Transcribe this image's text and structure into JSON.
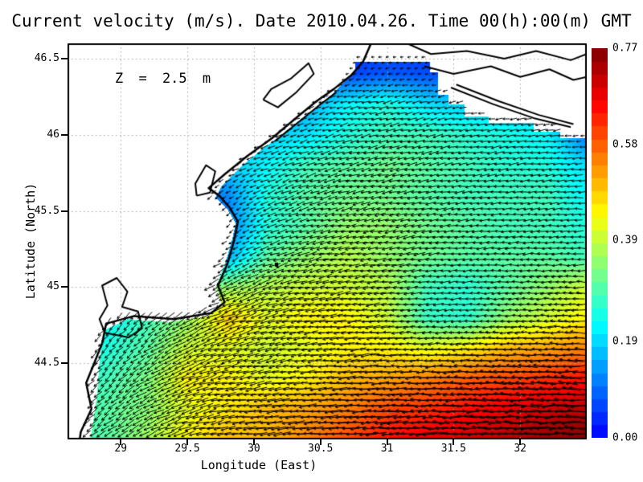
{
  "title": "Current velocity (m/s). Date 2010.04.26. Time 00(h):00(m) GMT",
  "annotation": "Z = 2.5 m",
  "axes": {
    "xlabel": "Longitude (East)",
    "ylabel": "Latitude (North)",
    "xtick_labels": [
      "29",
      "29.5",
      "30",
      "30.5",
      "31",
      "31.5",
      "32"
    ],
    "ytick_labels": [
      "46.5",
      "46",
      "45.5",
      "45",
      "44.5"
    ]
  },
  "colorbar": {
    "tick_labels": [
      "0.77",
      "0.58",
      "0.39",
      "0.19",
      "0.00"
    ]
  },
  "colors": {
    "background": "#ffffff",
    "land": "#ffffff",
    "coast": "#000000",
    "gridline": "#a0a0a0",
    "arrow": "#000000",
    "frame": "#000000",
    "text": "#000000",
    "colormap_low": "#0000fa",
    "colormap_high": "#800000"
  },
  "chart_data": {
    "type": "heatmap",
    "subtype": "quiver-vector-field-map",
    "title": "Current velocity (m/s). Date 2010.04.26. Time 00(h):00(m) GMT",
    "xlabel": "Longitude (East)",
    "ylabel": "Latitude (North)",
    "depth_annotation": "Z = 2.5 m",
    "speed_units": "m/s",
    "xlim": [
      28.6,
      32.5
    ],
    "ylim": [
      44.0,
      46.6
    ],
    "xticks": [
      29,
      29.5,
      30,
      30.5,
      31,
      31.5,
      32
    ],
    "yticks": [
      46.5,
      46,
      45.5,
      45,
      44.5
    ],
    "grid": true,
    "colormap": "jet",
    "colorbar": {
      "min": 0.0,
      "max": 0.77,
      "label_values": [
        0.77,
        0.58,
        0.39,
        0.19,
        0.0
      ]
    },
    "grid_lons": [
      28.6,
      28.9,
      29.2,
      29.5,
      29.8,
      30.1,
      30.4,
      30.7,
      31.0,
      31.3,
      31.6,
      31.9,
      32.2,
      32.5
    ],
    "grid_lats": [
      44.0,
      44.2,
      44.4,
      44.6,
      44.8,
      45.0,
      45.2,
      45.4,
      45.6,
      45.8,
      46.0,
      46.2,
      46.4,
      46.6
    ],
    "speed": [
      [
        0.28,
        0.3,
        0.36,
        0.45,
        0.5,
        0.5,
        0.55,
        0.6,
        0.65,
        0.68,
        0.7,
        0.72,
        0.75,
        0.77
      ],
      [
        0.28,
        0.3,
        0.34,
        0.42,
        0.46,
        0.5,
        0.52,
        0.55,
        0.6,
        0.62,
        0.65,
        0.68,
        0.7,
        0.72
      ],
      [
        0.26,
        0.28,
        0.33,
        0.45,
        0.45,
        0.42,
        0.45,
        0.5,
        0.52,
        0.55,
        0.58,
        0.6,
        0.62,
        0.65
      ],
      [
        0.24,
        0.25,
        0.3,
        0.4,
        0.42,
        0.4,
        0.42,
        0.45,
        0.45,
        0.42,
        0.45,
        0.5,
        0.52,
        0.55
      ],
      [
        0.22,
        0.22,
        0.28,
        0.35,
        0.48,
        0.42,
        0.45,
        0.45,
        0.4,
        0.27,
        0.26,
        0.35,
        0.4,
        0.45
      ],
      [
        0.2,
        0.2,
        0.2,
        0.3,
        0.35,
        0.38,
        0.4,
        0.4,
        0.38,
        0.28,
        0.26,
        0.3,
        0.35,
        0.4
      ],
      [
        0.15,
        0.15,
        0.15,
        0.15,
        0.15,
        0.3,
        0.35,
        0.38,
        0.35,
        0.32,
        0.3,
        0.3,
        0.3,
        0.28
      ],
      [
        0.1,
        0.1,
        0.1,
        0.1,
        0.1,
        0.25,
        0.3,
        0.35,
        0.35,
        0.32,
        0.3,
        0.28,
        0.28,
        0.25
      ],
      [
        0.12,
        0.12,
        0.12,
        0.12,
        0.12,
        0.25,
        0.3,
        0.32,
        0.32,
        0.3,
        0.28,
        0.28,
        0.28,
        0.22
      ],
      [
        0.15,
        0.15,
        0.15,
        0.15,
        0.18,
        0.22,
        0.28,
        0.3,
        0.32,
        0.3,
        0.28,
        0.26,
        0.25,
        0.2
      ],
      [
        0.15,
        0.15,
        0.15,
        0.15,
        0.15,
        0.18,
        0.2,
        0.25,
        0.28,
        0.28,
        0.26,
        0.24,
        0.22,
        0.1
      ],
      [
        0.12,
        0.12,
        0.12,
        0.12,
        0.12,
        0.13,
        0.15,
        0.22,
        0.25,
        0.2,
        0.18,
        0.18,
        0.18,
        0.1
      ],
      [
        0.08,
        0.08,
        0.08,
        0.08,
        0.08,
        0.08,
        0.06,
        0.06,
        0.08,
        0.07,
        0.07,
        0.07,
        0.07,
        0.07
      ],
      [
        0.05,
        0.05,
        0.05,
        0.05,
        0.05,
        0.05,
        0.05,
        0.05,
        0.05,
        0.05,
        0.05,
        0.05,
        0.05,
        0.05
      ]
    ],
    "direction_deg_ccw_from_east": [
      [
        220,
        215,
        205,
        195,
        188,
        186,
        184,
        183,
        182,
        181,
        180,
        180,
        179,
        178
      ],
      [
        222,
        218,
        208,
        198,
        190,
        186,
        184,
        183,
        182,
        181,
        180,
        180,
        179,
        178
      ],
      [
        226,
        222,
        212,
        202,
        193,
        188,
        185,
        183,
        182,
        181,
        180,
        179,
        178,
        178
      ],
      [
        230,
        226,
        216,
        206,
        196,
        191,
        187,
        184,
        183,
        182,
        181,
        180,
        179,
        178
      ],
      [
        232,
        230,
        220,
        210,
        200,
        194,
        189,
        186,
        184,
        183,
        182,
        181,
        180,
        179
      ],
      [
        230,
        228,
        226,
        216,
        206,
        197,
        191,
        188,
        186,
        184,
        183,
        182,
        181,
        180
      ],
      [
        225,
        222,
        220,
        216,
        212,
        199,
        193,
        189,
        187,
        185,
        184,
        183,
        182,
        181
      ],
      [
        220,
        218,
        217,
        216,
        216,
        201,
        195,
        191,
        188,
        186,
        185,
        184,
        183,
        182
      ],
      [
        214,
        213,
        212,
        212,
        212,
        201,
        196,
        193,
        190,
        188,
        186,
        185,
        184,
        183
      ],
      [
        205,
        204,
        203,
        202,
        200,
        199,
        196,
        193,
        191,
        189,
        187,
        186,
        185,
        184
      ],
      [
        200,
        200,
        199,
        199,
        198,
        198,
        197,
        194,
        192,
        190,
        188,
        187,
        186,
        185
      ],
      [
        198,
        198,
        197,
        197,
        196,
        196,
        196,
        194,
        192,
        191,
        190,
        189,
        188,
        187
      ],
      [
        195,
        195,
        195,
        194,
        194,
        194,
        193,
        193,
        191,
        190,
        189,
        188,
        187,
        186
      ],
      [
        190,
        190,
        190,
        190,
        190,
        190,
        190,
        190,
        190,
        190,
        190,
        190,
        190,
        190
      ]
    ],
    "sea_polygon": [
      [
        28.77,
        44.0
      ],
      [
        28.82,
        44.3
      ],
      [
        28.84,
        44.55
      ],
      [
        28.88,
        44.72
      ],
      [
        29.05,
        44.79
      ],
      [
        29.35,
        44.77
      ],
      [
        29.65,
        44.81
      ],
      [
        29.76,
        44.88
      ],
      [
        29.71,
        45.0
      ],
      [
        29.78,
        45.15
      ],
      [
        29.83,
        45.3
      ],
      [
        29.86,
        45.42
      ],
      [
        29.8,
        45.51
      ],
      [
        29.71,
        45.59
      ],
      [
        29.76,
        45.67
      ],
      [
        29.9,
        45.79
      ],
      [
        30.05,
        45.9
      ],
      [
        30.16,
        45.97
      ],
      [
        30.36,
        46.11
      ],
      [
        30.5,
        46.2
      ],
      [
        30.6,
        46.28
      ],
      [
        30.68,
        46.35
      ],
      [
        30.76,
        46.42
      ],
      [
        30.76,
        46.48
      ],
      [
        31.32,
        46.48
      ],
      [
        31.32,
        46.41
      ],
      [
        31.38,
        46.41
      ],
      [
        31.38,
        46.26
      ],
      [
        31.46,
        46.26
      ],
      [
        31.46,
        46.2
      ],
      [
        31.58,
        46.2
      ],
      [
        31.58,
        46.12
      ],
      [
        31.76,
        46.12
      ],
      [
        31.76,
        46.08
      ],
      [
        32.1,
        46.08
      ],
      [
        32.1,
        46.02
      ],
      [
        32.3,
        46.02
      ],
      [
        32.3,
        45.98
      ],
      [
        32.5,
        45.98
      ],
      [
        32.5,
        44.0
      ]
    ],
    "coast_lines": [
      [
        [
          30.88,
          46.6
        ],
        [
          30.82,
          46.48
        ],
        [
          30.73,
          46.39
        ],
        [
          30.6,
          46.3
        ],
        [
          30.47,
          46.22
        ],
        [
          30.33,
          46.12
        ],
        [
          30.14,
          45.98
        ],
        [
          29.95,
          45.86
        ],
        [
          29.78,
          45.74
        ],
        [
          29.66,
          45.65
        ],
        [
          29.74,
          45.6
        ],
        [
          29.82,
          45.52
        ],
        [
          29.88,
          45.43
        ],
        [
          29.85,
          45.3
        ],
        [
          29.8,
          45.15
        ],
        [
          29.73,
          45.01
        ],
        [
          29.78,
          44.9
        ],
        [
          29.68,
          44.83
        ],
        [
          29.4,
          44.79
        ],
        [
          29.1,
          44.81
        ],
        [
          28.89,
          44.76
        ],
        [
          28.86,
          44.63
        ],
        [
          28.8,
          44.5
        ],
        [
          28.74,
          44.37
        ],
        [
          28.78,
          44.2
        ],
        [
          28.7,
          44.05
        ],
        [
          28.69,
          43.99
        ]
      ],
      [
        [
          30.16,
          45.96
        ],
        [
          30.36,
          46.1
        ],
        [
          30.5,
          46.2
        ],
        [
          30.62,
          46.28
        ]
      ],
      [
        [
          31.15,
          46.6
        ],
        [
          31.33,
          46.53
        ],
        [
          31.6,
          46.55
        ],
        [
          31.88,
          46.5
        ],
        [
          32.12,
          46.55
        ],
        [
          32.38,
          46.49
        ],
        [
          32.5,
          46.53
        ]
      ],
      [
        [
          31.28,
          46.45
        ],
        [
          31.5,
          46.4
        ],
        [
          31.78,
          46.45
        ],
        [
          32.0,
          46.38
        ],
        [
          32.22,
          46.43
        ],
        [
          32.4,
          46.36
        ],
        [
          32.5,
          46.38
        ]
      ],
      [
        [
          31.48,
          46.31
        ],
        [
          31.8,
          46.2
        ],
        [
          32.1,
          46.11
        ],
        [
          32.38,
          46.05
        ]
      ],
      [
        [
          31.52,
          46.33
        ],
        [
          31.84,
          46.22
        ],
        [
          32.14,
          46.13
        ],
        [
          32.4,
          46.07
        ]
      ]
    ],
    "lakes": [
      [
        [
          28.88,
          44.7
        ],
        [
          29.06,
          44.67
        ],
        [
          29.16,
          44.73
        ],
        [
          29.13,
          44.84
        ],
        [
          29.01,
          44.87
        ],
        [
          29.05,
          44.97
        ],
        [
          28.97,
          45.06
        ],
        [
          28.86,
          45.01
        ],
        [
          28.9,
          44.88
        ],
        [
          28.84,
          44.79
        ],
        [
          28.88,
          44.7
        ]
      ],
      [
        [
          30.07,
          46.23
        ],
        [
          30.18,
          46.18
        ],
        [
          30.32,
          46.28
        ],
        [
          30.45,
          46.4
        ],
        [
          30.41,
          46.47
        ],
        [
          30.28,
          46.37
        ],
        [
          30.13,
          46.3
        ],
        [
          30.07,
          46.23
        ]
      ],
      [
        [
          29.57,
          45.6
        ],
        [
          29.67,
          45.62
        ],
        [
          29.71,
          45.76
        ],
        [
          29.64,
          45.8
        ],
        [
          29.56,
          45.68
        ],
        [
          29.57,
          45.6
        ]
      ]
    ],
    "island_point": [
      30.17,
      45.15
    ]
  }
}
